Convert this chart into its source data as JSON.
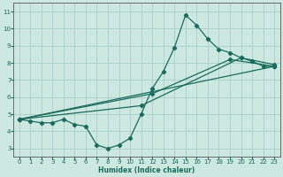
{
  "xlabel": "Humidex (Indice chaleur)",
  "bg_color": "#cce8e0",
  "line_color": "#1a6b5e",
  "grid_color": "#aacfc8",
  "xlim": [
    -0.5,
    23.5
  ],
  "ylim": [
    2.5,
    11.5
  ],
  "xticks": [
    0,
    1,
    2,
    3,
    4,
    5,
    6,
    7,
    8,
    9,
    10,
    11,
    12,
    13,
    14,
    15,
    16,
    17,
    18,
    19,
    20,
    21,
    22,
    23
  ],
  "yticks": [
    3,
    4,
    5,
    6,
    7,
    8,
    9,
    10,
    11
  ],
  "line1_x": [
    0,
    1,
    2,
    3,
    4,
    5,
    6,
    7,
    8,
    9,
    10,
    11,
    12,
    13,
    14,
    15,
    16,
    17,
    18,
    19,
    20,
    21,
    22,
    23
  ],
  "line1_y": [
    4.7,
    4.6,
    4.5,
    4.5,
    4.7,
    4.4,
    4.3,
    3.2,
    3.0,
    3.2,
    3.6,
    5.0,
    6.5,
    7.5,
    8.9,
    10.8,
    10.2,
    9.4,
    8.8,
    8.6,
    8.3,
    8.1,
    7.8,
    7.8
  ],
  "line2_x": [
    0,
    23
  ],
  "line2_y": [
    4.7,
    7.8
  ],
  "line3_x": [
    0,
    12,
    19,
    23
  ],
  "line3_y": [
    4.7,
    6.2,
    8.2,
    7.8
  ],
  "line4_x": [
    0,
    11,
    20,
    23
  ],
  "line4_y": [
    4.7,
    5.5,
    8.3,
    7.9
  ]
}
